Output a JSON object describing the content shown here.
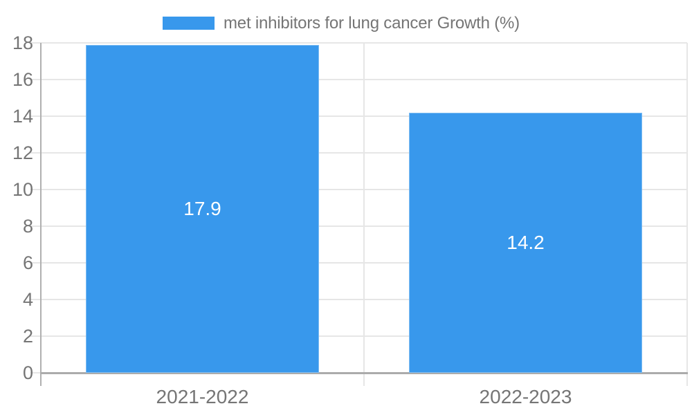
{
  "legend": {
    "label": "met inhibitors for lung cancer Growth (%)"
  },
  "chart_data": {
    "type": "bar",
    "title": "",
    "series_name": "met inhibitors for lung cancer Growth (%)",
    "categories": [
      "2021-2022",
      "2022-2023"
    ],
    "values": [
      17.9,
      14.2
    ],
    "value_labels": [
      "17.9",
      "14.2"
    ],
    "yticks": [
      0,
      2,
      4,
      6,
      8,
      10,
      12,
      14,
      16,
      18
    ],
    "ylim": [
      0,
      18
    ],
    "xlabel": "",
    "ylabel": "",
    "grid": true,
    "legend_position": "top-center",
    "bar_color": "#3898ec",
    "value_label_color": "#ffffff",
    "tick_label_color": "#757575",
    "gridline_color": "#e6e6e6",
    "axis_color": "#b0b0b0"
  }
}
